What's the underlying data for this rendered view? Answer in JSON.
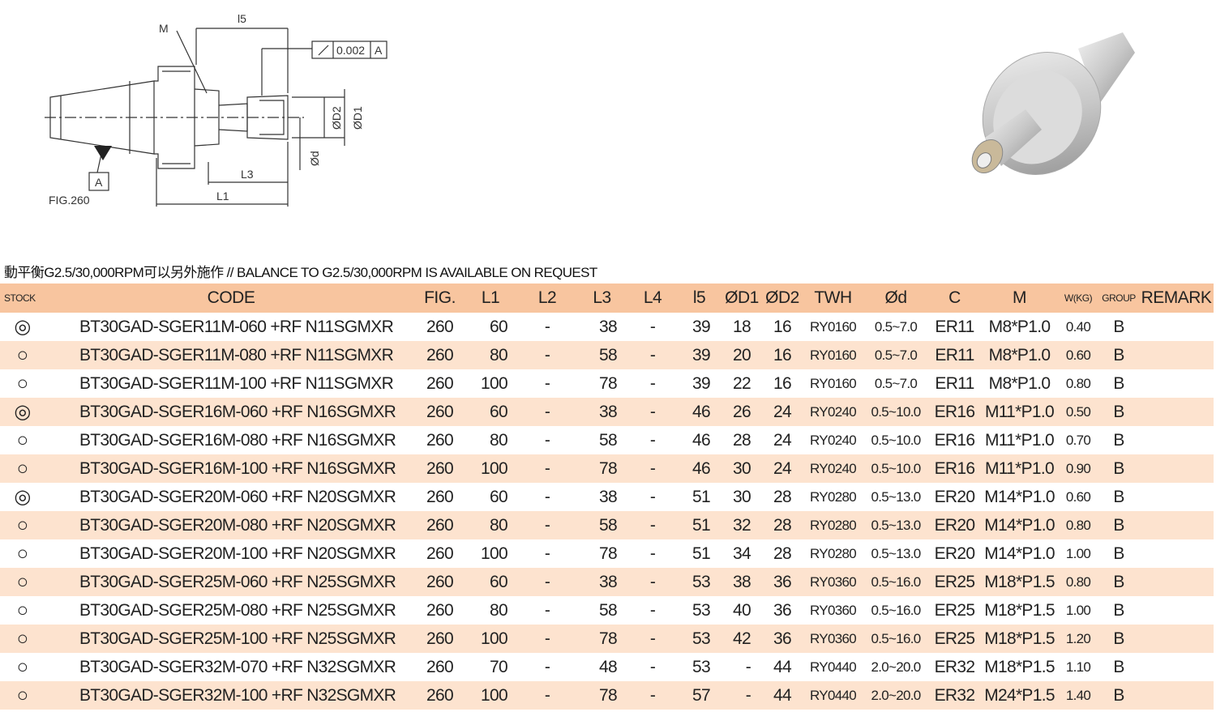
{
  "drawing": {
    "label_m": "M",
    "label_l5": "l5",
    "tolerance": "0.002",
    "datum_ref": "A",
    "label_d2": "ØD2",
    "label_d1": "ØD1",
    "label_d": "Ød",
    "label_l3": "L3",
    "label_l1": "L1",
    "datum": "A",
    "figure": "FIG.260"
  },
  "note": "動平衡G2.5/30,000RPM可以另外施作 // BALANCE TO G2.5/30,000RPM IS AVAILABLE ON REQUEST",
  "table": {
    "header": [
      "STOCK",
      "CODE",
      "FIG.",
      "L1",
      "L2",
      "L3",
      "L4",
      "l5",
      "ØD1",
      "ØD2",
      "TWH",
      "Ød",
      "C",
      "M",
      "W(KG)",
      "GROUP",
      "REMARK"
    ],
    "rows": [
      [
        "◎",
        "BT30GAD-SGER11M-060 +RF N11SGMXR",
        260,
        60,
        "-",
        38,
        "-",
        39,
        18,
        16,
        "RY0160",
        "0.5~7.0",
        "ER11",
        "M8*P1.0",
        "0.40",
        "B"
      ],
      [
        "○",
        "BT30GAD-SGER11M-080 +RF N11SGMXR",
        260,
        80,
        "-",
        58,
        "-",
        39,
        20,
        16,
        "RY0160",
        "0.5~7.0",
        "ER11",
        "M8*P1.0",
        "0.60",
        "B"
      ],
      [
        "○",
        "BT30GAD-SGER11M-100 +RF N11SGMXR",
        260,
        100,
        "-",
        78,
        "-",
        39,
        22,
        16,
        "RY0160",
        "0.5~7.0",
        "ER11",
        "M8*P1.0",
        "0.80",
        "B"
      ],
      [
        "◎",
        "BT30GAD-SGER16M-060 +RF N16SGMXR",
        260,
        60,
        "-",
        38,
        "-",
        46,
        26,
        24,
        "RY0240",
        "0.5~10.0",
        "ER16",
        "M11*P1.0",
        "0.50",
        "B"
      ],
      [
        "○",
        "BT30GAD-SGER16M-080 +RF N16SGMXR",
        260,
        80,
        "-",
        58,
        "-",
        46,
        28,
        24,
        "RY0240",
        "0.5~10.0",
        "ER16",
        "M11*P1.0",
        "0.70",
        "B"
      ],
      [
        "○",
        "BT30GAD-SGER16M-100 +RF N16SGMXR",
        260,
        100,
        "-",
        78,
        "-",
        46,
        30,
        24,
        "RY0240",
        "0.5~10.0",
        "ER16",
        "M11*P1.0",
        "0.90",
        "B"
      ],
      [
        "◎",
        "BT30GAD-SGER20M-060 +RF N20SGMXR",
        260,
        60,
        "-",
        38,
        "-",
        51,
        30,
        28,
        "RY0280",
        "0.5~13.0",
        "ER20",
        "M14*P1.0",
        "0.60",
        "B"
      ],
      [
        "○",
        "BT30GAD-SGER20M-080 +RF N20SGMXR",
        260,
        80,
        "-",
        58,
        "-",
        51,
        32,
        28,
        "RY0280",
        "0.5~13.0",
        "ER20",
        "M14*P1.0",
        "0.80",
        "B"
      ],
      [
        "○",
        "BT30GAD-SGER20M-100 +RF N20SGMXR",
        260,
        100,
        "-",
        78,
        "-",
        51,
        34,
        28,
        "RY0280",
        "0.5~13.0",
        "ER20",
        "M14*P1.0",
        "1.00",
        "B"
      ],
      [
        "○",
        "BT30GAD-SGER25M-060 +RF N25SGMXR",
        260,
        60,
        "-",
        38,
        "-",
        53,
        38,
        36,
        "RY0360",
        "0.5~16.0",
        "ER25",
        "M18*P1.5",
        "0.80",
        "B"
      ],
      [
        "○",
        "BT30GAD-SGER25M-080 +RF N25SGMXR",
        260,
        80,
        "-",
        58,
        "-",
        53,
        40,
        36,
        "RY0360",
        "0.5~16.0",
        "ER25",
        "M18*P1.5",
        "1.00",
        "B"
      ],
      [
        "○",
        "BT30GAD-SGER25M-100 +RF N25SGMXR",
        260,
        100,
        "-",
        78,
        "-",
        53,
        42,
        36,
        "RY0360",
        "0.5~16.0",
        "ER25",
        "M18*P1.5",
        "1.20",
        "B"
      ],
      [
        "○",
        "BT30GAD-SGER32M-070 +RF N32SGMXR",
        260,
        70,
        "-",
        48,
        "-",
        53,
        "-",
        44,
        "RY0440",
        "2.0~20.0",
        "ER32",
        "M18*P1.5",
        "1.10",
        "B"
      ],
      [
        "○",
        "BT30GAD-SGER32M-100 +RF N32SGMXR",
        260,
        100,
        "-",
        78,
        "-",
        57,
        "-",
        44,
        "RY0440",
        "2.0~20.0",
        "ER32",
        "M24*P1.5",
        "1.40",
        "B"
      ]
    ]
  }
}
